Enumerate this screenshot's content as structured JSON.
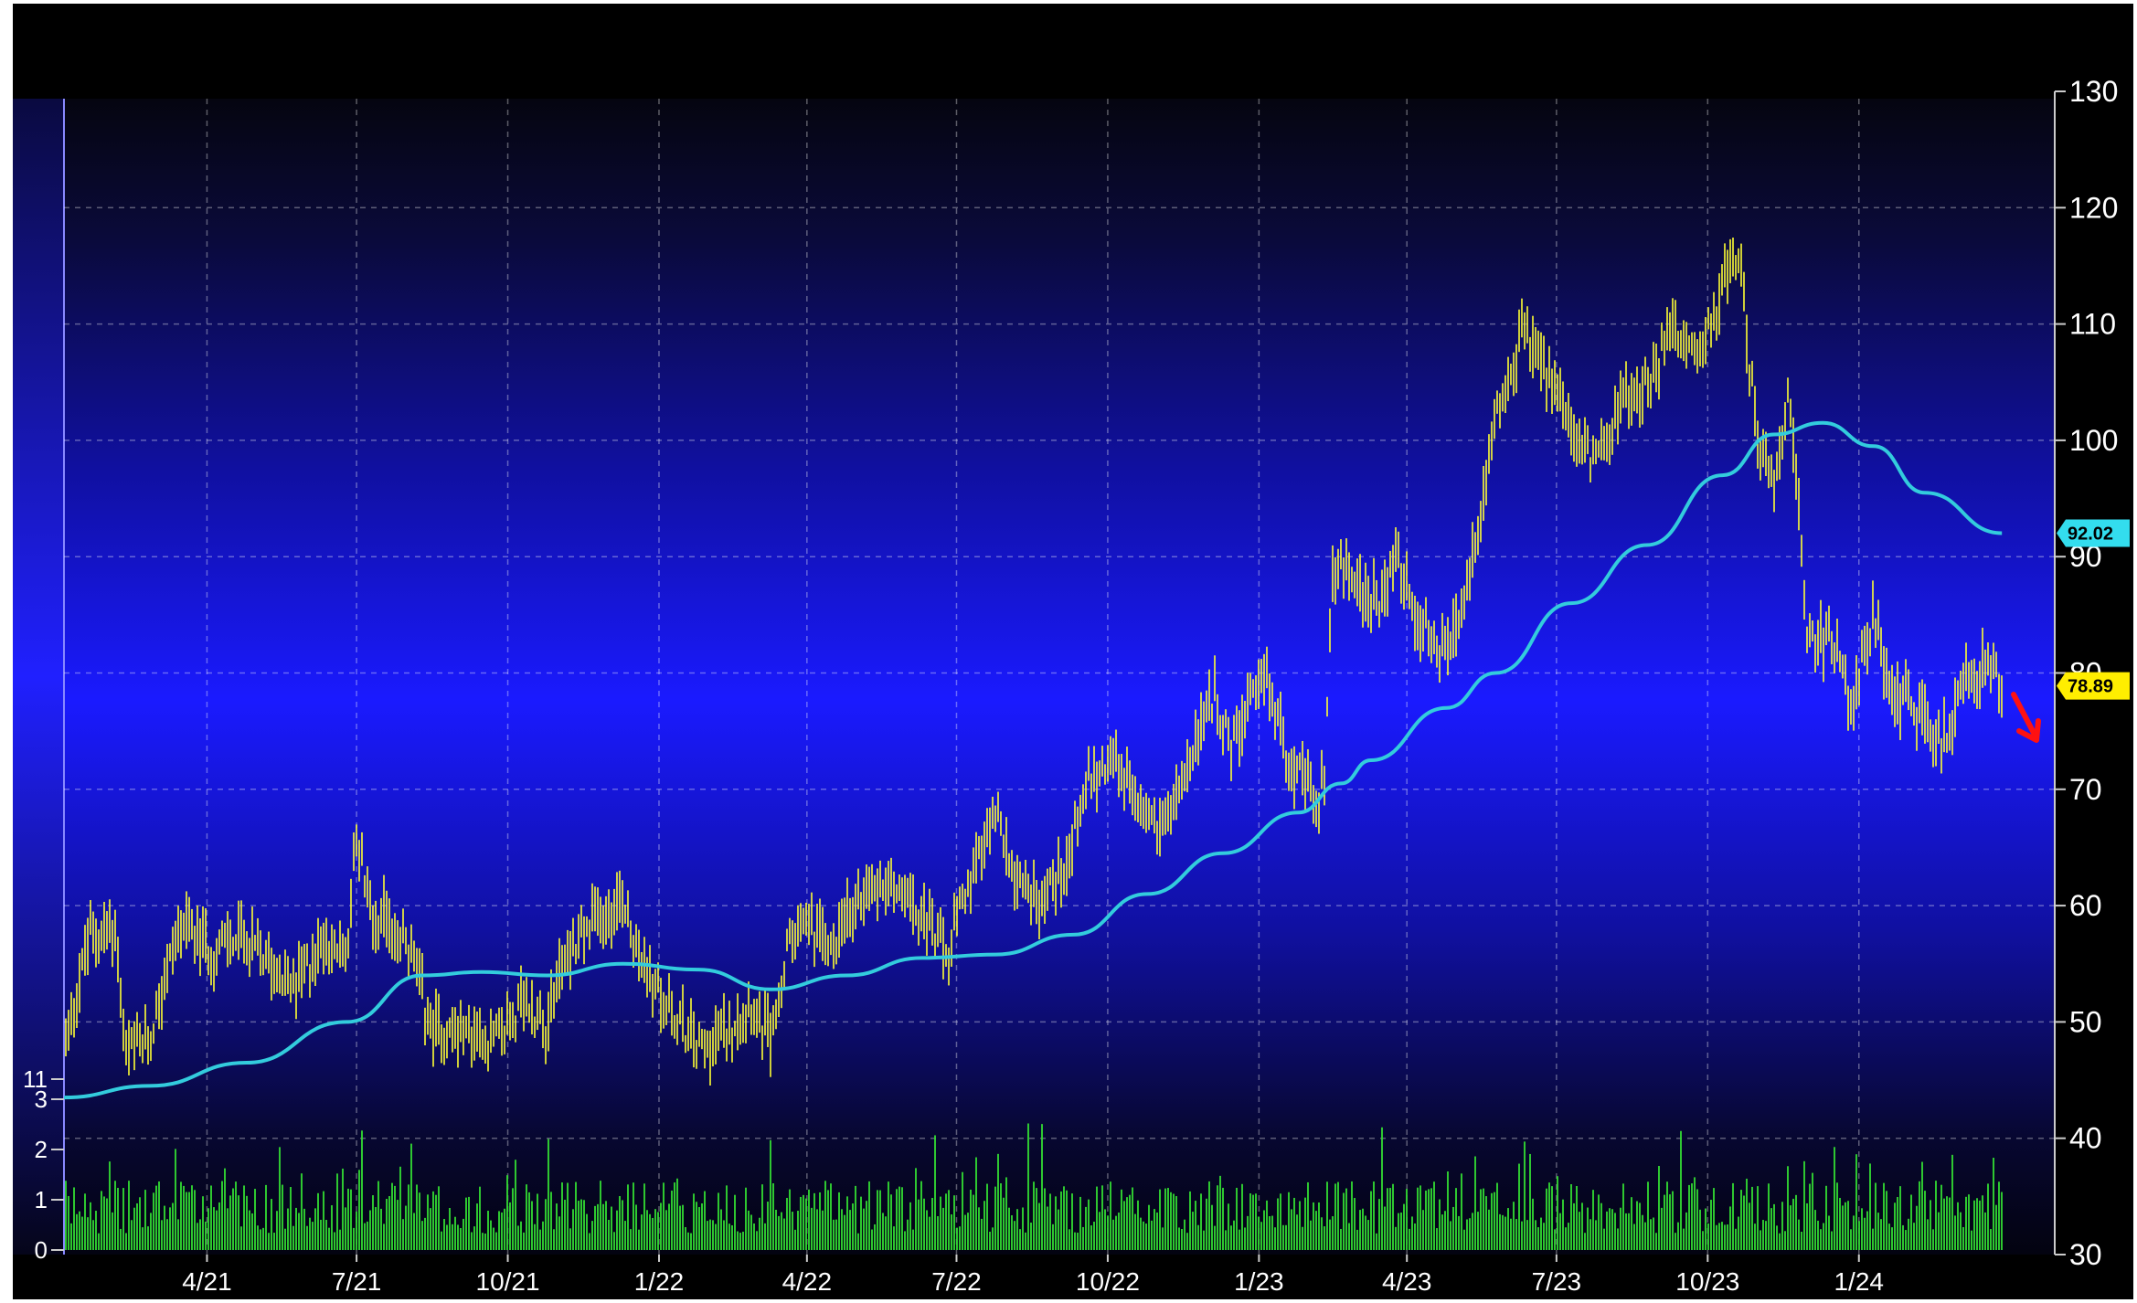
{
  "chart_data": {
    "type": "ohlc_bar_with_moving_average_and_volume",
    "x_ticks": [
      "4/21",
      "7/21",
      "10/21",
      "1/22",
      "4/22",
      "7/22",
      "10/22",
      "1/23",
      "4/23",
      "7/23",
      "10/23",
      "1/24"
    ],
    "y_ticks": [
      "30",
      "40",
      "50",
      "60",
      "70",
      "80",
      "90",
      "100",
      "110",
      "120",
      "130"
    ],
    "y_range": [
      30,
      130
    ],
    "volume_ticks": [
      "0",
      "1",
      "2",
      "3",
      "11"
    ],
    "grid": true,
    "price_series": {
      "name": "price",
      "color": "#ffff33",
      "values": [
        [
          "2021-01-04",
          48.0
        ],
        [
          "2021-01-20",
          57.5
        ],
        [
          "2021-02-05",
          58.0
        ],
        [
          "2021-02-10",
          47.0
        ],
        [
          "2021-02-25",
          48.5
        ],
        [
          "2021-03-15",
          58.5
        ],
        [
          "2021-04-05",
          56.0
        ],
        [
          "2021-04-20",
          57.5
        ],
        [
          "2021-05-10",
          55.0
        ],
        [
          "2021-05-25",
          53.0
        ],
        [
          "2021-06-10",
          57.0
        ],
        [
          "2021-06-25",
          56.0
        ],
        [
          "2021-06-30",
          66.0
        ],
        [
          "2021-07-10",
          59.5
        ],
        [
          "2021-07-25",
          58.0
        ],
        [
          "2021-08-05",
          55.0
        ],
        [
          "2021-08-15",
          49.5
        ],
        [
          "2021-09-05",
          49.0
        ],
        [
          "2021-09-25",
          48.5
        ],
        [
          "2021-10-10",
          51.5
        ],
        [
          "2021-10-25",
          50.0
        ],
        [
          "2021-11-05",
          56.0
        ],
        [
          "2021-11-25",
          59.0
        ],
        [
          "2021-12-10",
          60.5
        ],
        [
          "2021-12-20",
          56.0
        ],
        [
          "2022-01-05",
          51.0
        ],
        [
          "2022-01-25",
          48.0
        ],
        [
          "2022-02-10",
          49.0
        ],
        [
          "2022-02-25",
          52.0
        ],
        [
          "2022-03-10",
          48.5
        ],
        [
          "2022-03-20",
          56.0
        ],
        [
          "2022-04-01",
          59.0
        ],
        [
          "2022-04-15",
          56.0
        ],
        [
          "2022-05-05",
          61.0
        ],
        [
          "2022-05-20",
          62.5
        ],
        [
          "2022-06-10",
          59.5
        ],
        [
          "2022-06-25",
          55.5
        ],
        [
          "2022-07-10",
          62.5
        ],
        [
          "2022-07-25",
          67.5
        ],
        [
          "2022-08-05",
          63.0
        ],
        [
          "2022-08-20",
          60.5
        ],
        [
          "2022-09-05",
          63.5
        ],
        [
          "2022-09-20",
          71.0
        ],
        [
          "2022-10-05",
          73.0
        ],
        [
          "2022-10-20",
          68.5
        ],
        [
          "2022-11-05",
          67.0
        ],
        [
          "2022-11-20",
          72.0
        ],
        [
          "2022-12-05",
          78.5
        ],
        [
          "2022-12-15",
          73.5
        ],
        [
          "2022-12-25",
          76.5
        ],
        [
          "2023-01-05",
          80.0
        ],
        [
          "2023-01-20",
          72.5
        ],
        [
          "2023-02-05",
          69.0
        ],
        [
          "2023-02-10",
          70.5
        ],
        [
          "2023-02-15",
          89.5
        ],
        [
          "2023-03-01",
          88.0
        ],
        [
          "2023-03-15",
          85.5
        ],
        [
          "2023-03-25",
          90.0
        ],
        [
          "2023-04-10",
          84.0
        ],
        [
          "2023-04-25",
          81.0
        ],
        [
          "2023-05-05",
          85.5
        ],
        [
          "2023-05-15",
          92.0
        ],
        [
          "2023-05-25",
          102.0
        ],
        [
          "2023-06-10",
          108.5
        ],
        [
          "2023-06-25",
          106.0
        ],
        [
          "2023-07-10",
          100.5
        ],
        [
          "2023-07-25",
          98.5
        ],
        [
          "2023-08-10",
          103.0
        ],
        [
          "2023-08-25",
          105.0
        ],
        [
          "2023-09-10",
          109.0
        ],
        [
          "2023-09-25",
          107.0
        ],
        [
          "2023-10-10",
          113.5
        ],
        [
          "2023-10-20",
          115.5
        ],
        [
          "2023-11-01",
          99.0
        ],
        [
          "2023-11-10",
          97.0
        ],
        [
          "2023-11-20",
          104.0
        ],
        [
          "2023-12-01",
          83.0
        ],
        [
          "2023-12-15",
          83.0
        ],
        [
          "2023-12-28",
          77.5
        ],
        [
          "2024-01-10",
          85.5
        ],
        [
          "2024-01-20",
          78.5
        ],
        [
          "2024-02-05",
          77.0
        ],
        [
          "2024-02-20",
          73.5
        ],
        [
          "2024-03-05",
          79.0
        ],
        [
          "2024-03-20",
          80.5
        ],
        [
          "2024-03-28",
          78.89
        ]
      ]
    },
    "moving_average_series": {
      "name": "moving average",
      "color": "#33ccdd",
      "values": [
        [
          "2021-01-04",
          43.5
        ],
        [
          "2021-02-25",
          44.5
        ],
        [
          "2021-04-25",
          46.5
        ],
        [
          "2021-06-25",
          50.0
        ],
        [
          "2021-08-10",
          54.0
        ],
        [
          "2021-09-15",
          54.3
        ],
        [
          "2021-10-25",
          54.0
        ],
        [
          "2021-12-10",
          55.0
        ],
        [
          "2022-01-25",
          54.5
        ],
        [
          "2022-03-10",
          52.8
        ],
        [
          "2022-04-25",
          54.0
        ],
        [
          "2022-06-10",
          55.5
        ],
        [
          "2022-07-25",
          55.8
        ],
        [
          "2022-09-10",
          57.5
        ],
        [
          "2022-10-25",
          61.0
        ],
        [
          "2022-12-10",
          64.5
        ],
        [
          "2023-01-25",
          68.0
        ],
        [
          "2023-02-20",
          70.5
        ],
        [
          "2023-03-10",
          72.5
        ],
        [
          "2023-04-25",
          77.0
        ],
        [
          "2023-05-25",
          80.0
        ],
        [
          "2023-07-10",
          86.0
        ],
        [
          "2023-08-25",
          91.0
        ],
        [
          "2023-10-10",
          97.0
        ],
        [
          "2023-11-10",
          100.5
        ],
        [
          "2023-12-10",
          101.5
        ],
        [
          "2024-01-10",
          99.5
        ],
        [
          "2024-02-10",
          95.5
        ],
        [
          "2024-03-28",
          92.02
        ]
      ]
    },
    "volume_series": {
      "name": "volume",
      "color": "#33dd33",
      "range": [
        0,
        3
      ]
    },
    "last_value_labels": [
      {
        "text": "92.02",
        "color": "#33ddee"
      },
      {
        "text": "78.89",
        "color": "#ffee00"
      }
    ],
    "annotation": {
      "type": "down-arrow",
      "color": "#ff1111"
    }
  }
}
